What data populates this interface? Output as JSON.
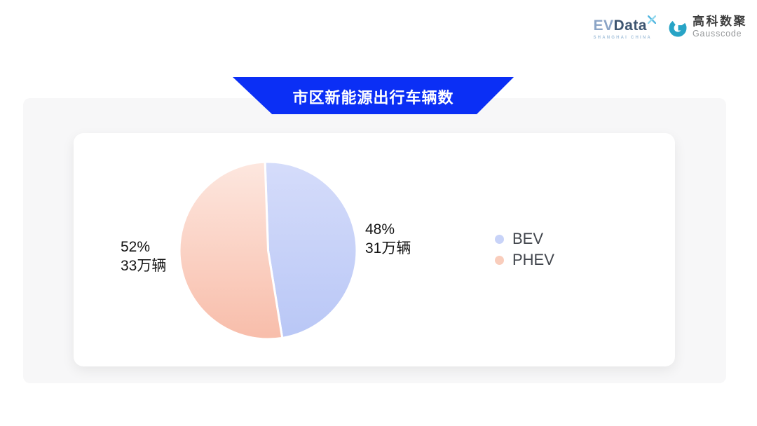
{
  "header": {
    "evdata_logo": {
      "ev": "EV",
      "data": "Data",
      "subtitle": "SHANGHAI CHINA"
    },
    "gausscode_logo": {
      "name_cn": "高科数聚",
      "name_en": "Gausscode"
    }
  },
  "banner": {
    "title": "市区新能源出行车辆数",
    "color": "#0B2FF5"
  },
  "chart_data": {
    "type": "pie",
    "title": "市区新能源出行车辆数",
    "legend_position": "right",
    "start_angle_deg": -2,
    "slice_gap_color": "#ffffff",
    "series": [
      {
        "name": "BEV",
        "percent": 48,
        "percent_label": "48%",
        "value": 31,
        "unit": "万辆",
        "value_label": "31万辆",
        "gradient_top": "#D5DCFA",
        "gradient_bottom": "#B9C7F6",
        "legend_color": "#C8D3F8"
      },
      {
        "name": "PHEV",
        "percent": 52,
        "percent_label": "52%",
        "value": 33,
        "unit": "万辆",
        "value_label": "33万辆",
        "gradient_top": "#FDE7DF",
        "gradient_bottom": "#F8BDAA",
        "legend_color": "#F9CDBC"
      }
    ]
  }
}
